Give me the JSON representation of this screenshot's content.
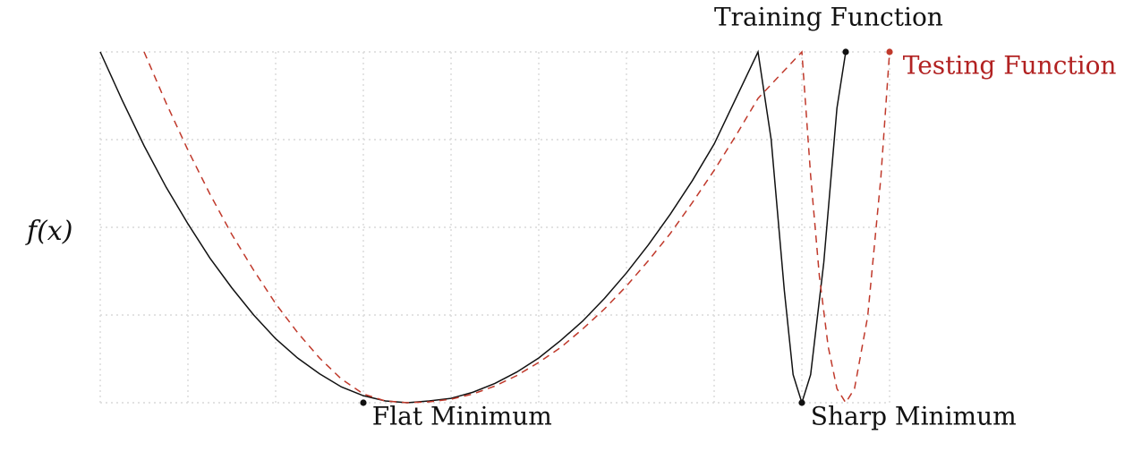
{
  "chart_data": {
    "type": "line",
    "title": "",
    "xlabel": "",
    "ylabel": "f(x)",
    "grid": true,
    "xlim": [
      0,
      9
    ],
    "ylim": [
      0,
      4
    ],
    "series": [
      {
        "name": "Training Function",
        "color": "#111111",
        "line_style": "solid",
        "x": [
          0,
          0.25,
          0.5,
          0.75,
          1,
          1.25,
          1.5,
          1.75,
          2,
          2.25,
          2.5,
          2.75,
          3,
          3.25,
          3.5,
          3.75,
          4,
          4.25,
          4.5,
          4.75,
          5,
          5.25,
          5.5,
          5.75,
          6,
          6.25,
          6.5,
          6.75,
          7,
          7.5,
          7.65,
          7.8,
          7.9,
          8.0,
          8.1,
          8.25,
          8.4,
          8.5
        ],
        "y": [
          4.0,
          3.45,
          2.93,
          2.46,
          2.04,
          1.65,
          1.31,
          1.0,
          0.73,
          0.51,
          0.33,
          0.18,
          0.08,
          0.02,
          0.0,
          0.02,
          0.05,
          0.12,
          0.22,
          0.35,
          0.51,
          0.71,
          0.93,
          1.19,
          1.48,
          1.8,
          2.15,
          2.53,
          2.95,
          4.0,
          3.0,
          1.28,
          0.32,
          0.0,
          0.32,
          1.6,
          3.36,
          4.0
        ]
      },
      {
        "name": "Testing Function",
        "color": "#c0392b",
        "line_style": "dashed",
        "x": [
          0.5,
          0.75,
          1,
          1.25,
          1.5,
          1.75,
          2,
          2.25,
          2.5,
          2.75,
          3,
          3.25,
          3.5,
          3.75,
          4,
          4.25,
          4.5,
          4.75,
          5,
          5.25,
          5.5,
          5.75,
          6,
          6.25,
          6.5,
          6.75,
          7,
          7.25,
          7.5,
          8.0,
          8.1,
          8.2,
          8.3,
          8.4,
          8.5,
          8.6,
          8.75,
          8.9,
          9.0
        ],
        "y": [
          4.0,
          3.42,
          2.88,
          2.38,
          1.92,
          1.51,
          1.13,
          0.8,
          0.51,
          0.27,
          0.1,
          0.02,
          0.0,
          0.01,
          0.04,
          0.1,
          0.19,
          0.31,
          0.46,
          0.63,
          0.84,
          1.07,
          1.33,
          1.62,
          1.93,
          2.28,
          2.65,
          3.05,
          3.47,
          4.0,
          2.59,
          1.44,
          0.64,
          0.16,
          0.0,
          0.16,
          0.98,
          2.56,
          4.0
        ]
      }
    ],
    "points": [
      {
        "name": "Flat Minimum",
        "x": 3.0,
        "y": 0.0,
        "color": "#111111"
      },
      {
        "name": "Sharp Minimum",
        "x": 8.0,
        "y": 0.0,
        "color": "#111111"
      },
      {
        "name": "Training Function",
        "x": 8.5,
        "y": 4.0,
        "color": "#111111"
      },
      {
        "name": "Testing Function",
        "x": 9.0,
        "y": 4.0,
        "color": "#c0392b"
      }
    ],
    "annotations": [
      {
        "text": "Training Function",
        "x": 7.0,
        "y": 4.3,
        "color": "#111111"
      },
      {
        "text": "Testing Function",
        "x": 9.15,
        "y": 3.75,
        "color": "#b22222"
      },
      {
        "text": "Flat Minimum",
        "x": 3.1,
        "y": -0.25,
        "color": "#111111"
      },
      {
        "text": "Sharp Minimum",
        "x": 8.1,
        "y": -0.25,
        "color": "#111111"
      }
    ]
  }
}
